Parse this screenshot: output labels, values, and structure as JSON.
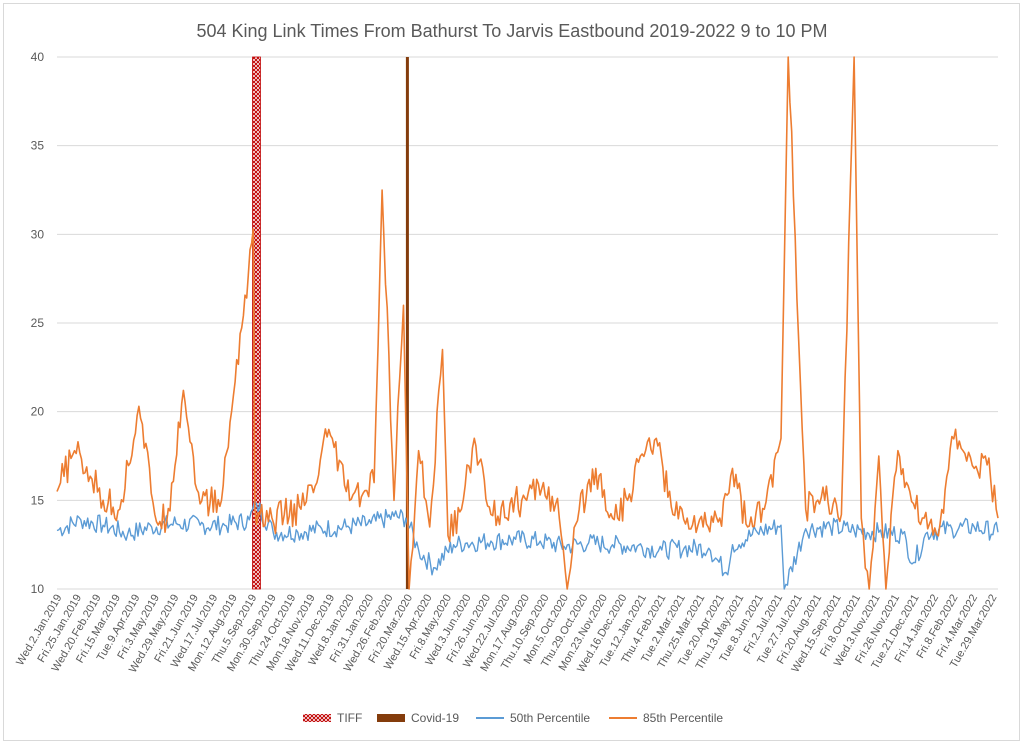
{
  "chart_data": {
    "type": "line",
    "title": "504 King Link Times From Bathurst To Jarvis Eastbound 2019-2022 9 to 10 PM",
    "xlabel": "",
    "ylabel": "",
    "ylim": [
      10,
      40
    ],
    "yticks": [
      10,
      15,
      20,
      25,
      30,
      35,
      40
    ],
    "grid": true,
    "legend_position": "bottom",
    "x_start": "2019-01-02",
    "x_end": "2022-03-31",
    "tick_labels": [
      "Wed.2.Jan.2019",
      "Fri.25.Jan.2019",
      "Wed.20.Feb.2019",
      "Fri.15.Mar.2019",
      "Tue.9.Apr.2019",
      "Fri.3.May.2019",
      "Wed.29.May.2019",
      "Fri.21.Jun.2019",
      "Wed.17.Jul.2019",
      "Mon.12.Aug.2019",
      "Thu.5.Sep.2019",
      "Mon.30.Sep.2019",
      "Thu.24.Oct.2019",
      "Mon.18.Nov.2019",
      "Wed.11.Dec.2019",
      "Wed.8.Jan.2020",
      "Fri.31.Jan.2020",
      "Wed.26.Feb.2020",
      "Fri.20.Mar.2020",
      "Wed.15.Apr.2020",
      "Fri.8.May.2020",
      "Wed.3.Jun.2020",
      "Fri.26.Jun.2020",
      "Wed.22.Jul.2020",
      "Mon.17.Aug.2020",
      "Thu.10.Sep.2020",
      "Mon.5.Oct.2020",
      "Thu.29.Oct.2020",
      "Mon.23.Nov.2020",
      "Wed.16.Dec.2020",
      "Tue.12.Jan.2021",
      "Thu.4.Feb.2021",
      "Tue.2.Mar.2021",
      "Thu.25.Mar.2021",
      "Tue.20.Apr.2021",
      "Thu.13.May.2021",
      "Tue.8.Jun.2021",
      "Fri.2.Jul.2021",
      "Tue.27.Jul.2021",
      "Fri.20.Aug.2021",
      "Wed.15.Sep.2021",
      "Fri.8.Oct.2021",
      "Wed.3.Nov.2021",
      "Fri.26.Nov.2021",
      "Tue.21.Dec.2021",
      "Fri.14.Jan.2022",
      "Fri.8.Feb.2022",
      "Fri.4.Mar.2022",
      "Tue.29.Mar.2022"
    ],
    "bands": [
      {
        "name": "TIFF",
        "start": "2019-09-05",
        "end": "2019-09-15",
        "color": "#c00000",
        "pattern": "hatch"
      },
      {
        "name": "Covid-19",
        "start": "2020-03-16",
        "end": "2020-03-17",
        "color": "#843c0c",
        "pattern": "solid"
      }
    ],
    "series": [
      {
        "name": "50th Percentile",
        "color": "#5b9bd5",
        "x": [
          "2019-01-02",
          "2019-02-01",
          "2019-03-01",
          "2019-04-01",
          "2019-05-01",
          "2019-06-01",
          "2019-07-01",
          "2019-08-01",
          "2019-09-01",
          "2019-09-10",
          "2019-10-01",
          "2019-11-01",
          "2019-12-01",
          "2020-01-01",
          "2020-02-01",
          "2020-03-01",
          "2020-03-16",
          "2020-04-01",
          "2020-04-20",
          "2020-05-15",
          "2020-06-01",
          "2020-07-01",
          "2020-08-01",
          "2020-09-01",
          "2020-10-01",
          "2020-11-01",
          "2020-12-01",
          "2021-01-01",
          "2021-02-01",
          "2021-03-01",
          "2021-04-01",
          "2021-04-25",
          "2021-05-01",
          "2021-06-01",
          "2021-07-01",
          "2021-07-05",
          "2021-08-01",
          "2021-09-01",
          "2021-10-01",
          "2021-11-01",
          "2021-12-01",
          "2021-12-15",
          "2022-01-01",
          "2022-02-01",
          "2022-03-01",
          "2022-03-31"
        ],
        "values": [
          13.3,
          13.9,
          13.6,
          13.1,
          13.5,
          13.7,
          13.6,
          13.6,
          13.9,
          14.8,
          13.2,
          13.2,
          13.4,
          13.5,
          13.7,
          14.1,
          14.0,
          12.2,
          11.2,
          12.5,
          12.6,
          12.7,
          12.8,
          12.7,
          12.4,
          12.6,
          12.5,
          12.4,
          12.2,
          12.3,
          12.3,
          10.8,
          12.5,
          13.2,
          13.6,
          10.0,
          13.4,
          13.5,
          13.3,
          13.2,
          13.1,
          11.5,
          13.2,
          13.4,
          13.5,
          13.2
        ]
      },
      {
        "name": "85th Percentile",
        "color": "#ed7d31",
        "x": [
          "2019-01-02",
          "2019-01-24",
          "2019-02-15",
          "2019-03-01",
          "2019-03-22",
          "2019-04-15",
          "2019-05-05",
          "2019-05-20",
          "2019-06-10",
          "2019-07-01",
          "2019-07-28",
          "2019-08-12",
          "2019-09-06",
          "2019-09-08",
          "2019-09-25",
          "2019-10-15",
          "2019-11-05",
          "2019-11-25",
          "2019-12-10",
          "2020-01-01",
          "2020-01-20",
          "2020-02-05",
          "2020-02-15",
          "2020-03-01",
          "2020-03-13",
          "2020-03-20",
          "2020-04-01",
          "2020-04-15",
          "2020-05-01",
          "2020-05-08",
          "2020-05-25",
          "2020-06-10",
          "2020-07-01",
          "2020-07-25",
          "2020-08-15",
          "2020-09-05",
          "2020-09-25",
          "2020-10-05",
          "2020-10-20",
          "2020-11-10",
          "2020-12-01",
          "2020-12-20",
          "2021-01-05",
          "2021-01-25",
          "2021-02-15",
          "2021-03-05",
          "2021-03-25",
          "2021-04-15",
          "2021-05-01",
          "2021-05-20",
          "2021-06-10",
          "2021-07-01",
          "2021-07-10",
          "2021-08-01",
          "2021-08-25",
          "2021-09-15",
          "2021-10-01",
          "2021-10-10",
          "2021-10-20",
          "2021-11-01",
          "2021-11-10",
          "2021-11-25",
          "2021-12-10",
          "2021-12-28",
          "2022-01-15",
          "2022-02-01",
          "2022-02-15",
          "2022-03-01",
          "2022-03-15",
          "2022-03-31"
        ],
        "values": [
          15.5,
          17.8,
          16.2,
          15.0,
          14.5,
          20.3,
          14.2,
          13.8,
          21.2,
          14.8,
          15.0,
          20.9,
          30.3,
          14.5,
          13.8,
          14.2,
          14.5,
          16.0,
          19.0,
          15.5,
          15.2,
          16.0,
          32.5,
          15.0,
          26.0,
          10.0,
          17.8,
          13.5,
          23.5,
          13.0,
          14.5,
          18.5,
          14.2,
          14.8,
          15.0,
          16.0,
          14.0,
          10.0,
          14.5,
          16.8,
          14.0,
          15.0,
          17.5,
          18.5,
          14.2,
          14.0,
          13.5,
          14.0,
          16.8,
          13.5,
          14.5,
          18.5,
          40.0,
          14.5,
          15.0,
          14.2,
          40.0,
          14.0,
          10.0,
          17.5,
          10.0,
          17.8,
          15.5,
          14.0,
          13.0,
          18.6,
          17.8,
          16.8,
          17.5,
          14.0
        ]
      }
    ],
    "legend": [
      {
        "name": "TIFF",
        "swatch": "hatch",
        "color": "#c00000"
      },
      {
        "name": "Covid-19",
        "swatch": "solid",
        "color": "#843c0c"
      },
      {
        "name": "50th Percentile",
        "swatch": "line",
        "color": "#5b9bd5"
      },
      {
        "name": "85th Percentile",
        "swatch": "line",
        "color": "#ed7d31"
      }
    ]
  }
}
